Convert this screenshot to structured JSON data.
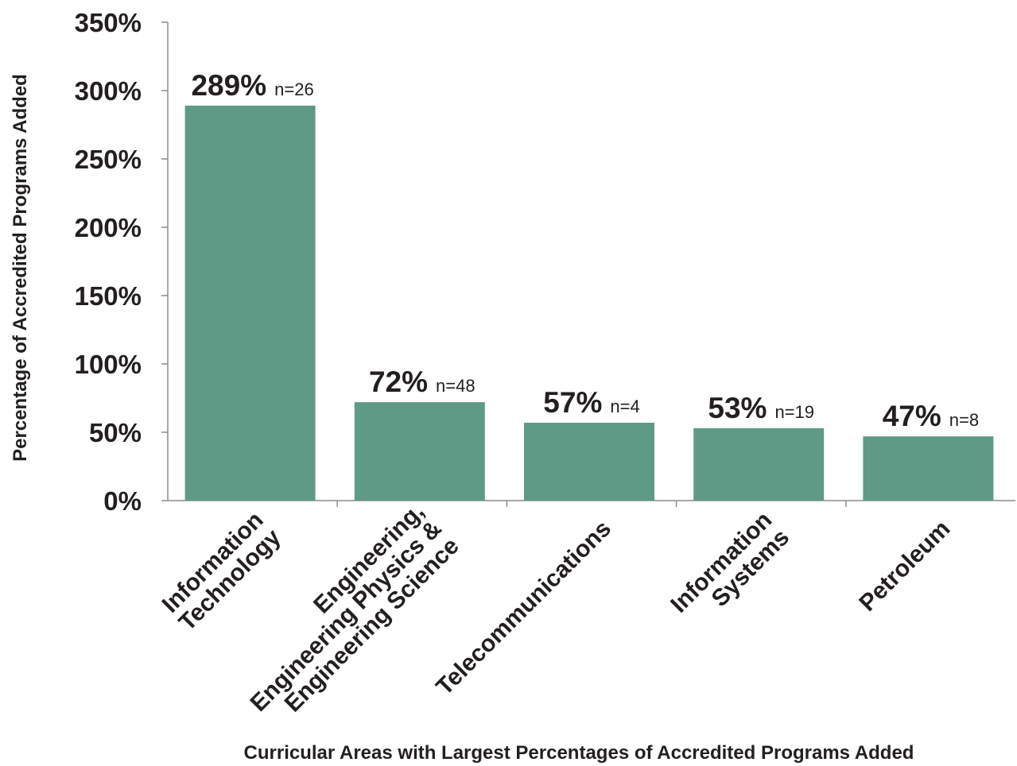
{
  "chart_data": {
    "type": "bar",
    "title": "",
    "xlabel": "Curricular Areas with Largest Percentages of Accredited Programs Added",
    "ylabel": "Percentage of Accredited Programs Added",
    "ylim": [
      0,
      350
    ],
    "yticks": [
      0,
      50,
      100,
      150,
      200,
      250,
      300,
      350
    ],
    "ytick_suffix": "%",
    "grid": false,
    "legend": "none",
    "bar_color": "#5f9a86",
    "categories": [
      [
        "Information",
        "Technology"
      ],
      [
        "Engineering,",
        "Engineering Physics &",
        "Engineering Science"
      ],
      [
        "Telecommunications"
      ],
      [
        "Information",
        "Systems"
      ],
      [
        "Petroleum"
      ]
    ],
    "values": [
      289,
      72,
      57,
      53,
      47
    ],
    "value_labels": [
      "289%",
      "72%",
      "57%",
      "53%",
      "47%"
    ],
    "n_labels": [
      "n=26",
      "n=48",
      "n=4",
      "n=19",
      "n=8"
    ]
  }
}
